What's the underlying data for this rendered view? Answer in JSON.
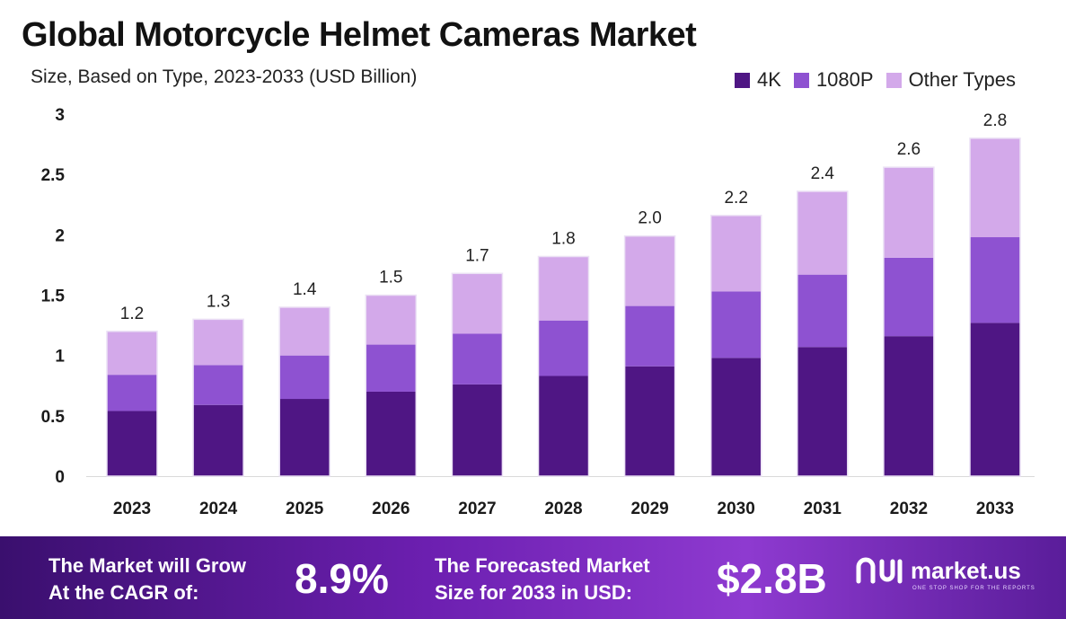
{
  "header": {
    "title": "Global Motorcycle Helmet Cameras Market",
    "subtitle": "Size, Based on Type, 2023-2033 (USD Billion)"
  },
  "chart_data": {
    "type": "bar",
    "stacked": true,
    "categories": [
      "2023",
      "2024",
      "2025",
      "2026",
      "2027",
      "2028",
      "2029",
      "2030",
      "2031",
      "2032",
      "2033"
    ],
    "series": [
      {
        "name": "4K",
        "color": "#4f1684",
        "values": [
          0.54,
          0.59,
          0.64,
          0.7,
          0.76,
          0.83,
          0.91,
          0.98,
          1.07,
          1.16,
          1.27
        ]
      },
      {
        "name": "1080P",
        "color": "#8e52d1",
        "values": [
          0.3,
          0.33,
          0.36,
          0.39,
          0.42,
          0.46,
          0.5,
          0.55,
          0.6,
          0.65,
          0.71
        ]
      },
      {
        "name": "Other Types",
        "color": "#d3a9ea",
        "values": [
          0.36,
          0.38,
          0.4,
          0.41,
          0.5,
          0.53,
          0.58,
          0.63,
          0.69,
          0.75,
          0.82
        ]
      }
    ],
    "totals": [
      "1.2",
      "1.3",
      "1.4",
      "1.5",
      "1.7",
      "1.8",
      "2.0",
      "2.2",
      "2.4",
      "2.6",
      "2.8"
    ],
    "yticks": [
      "0",
      "0.5",
      "1",
      "1.5",
      "2",
      "2.5",
      "3"
    ],
    "ylim": [
      0,
      3
    ],
    "legend_position": "top-right",
    "grid": false
  },
  "footer": {
    "cagr_label_line1": "The Market will Grow",
    "cagr_label_line2": "At the CAGR of:",
    "cagr_value": "8.9%",
    "forecast_label_line1": "The Forecasted Market",
    "forecast_label_line2": "Size for 2033 in USD:",
    "forecast_value": "$2.8B",
    "brand_name": "market.us",
    "brand_tagline": "ONE STOP SHOP FOR THE REPORTS",
    "brand_icon": "market-us-logo-icon"
  }
}
